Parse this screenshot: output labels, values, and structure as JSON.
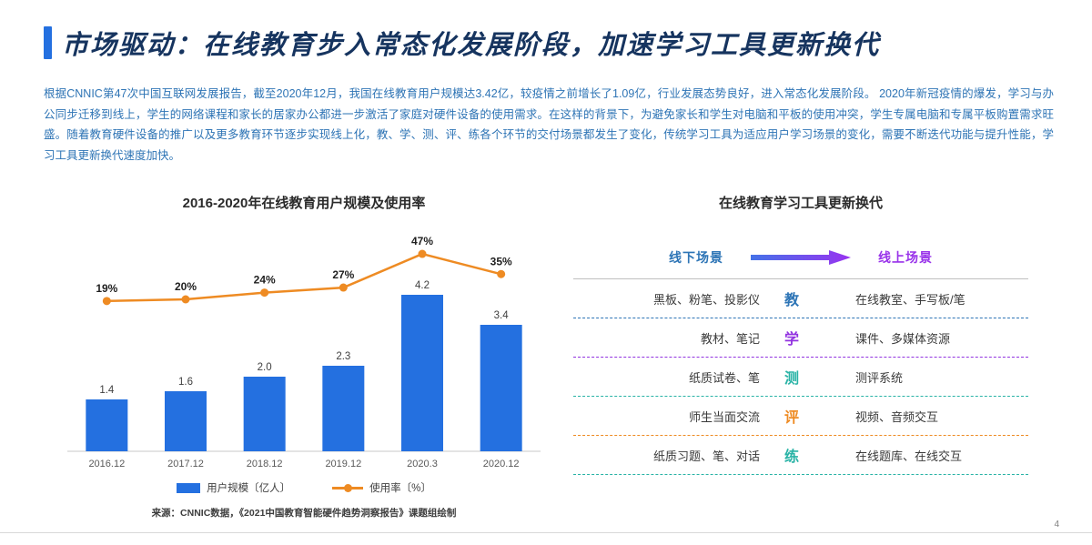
{
  "colors": {
    "accent": "#2470E0",
    "title": "#16345F",
    "body": "#2E74B5"
  },
  "header": {
    "title": "市场驱动：在线教育步入常态化发展阶段，加速学习工具更新换代",
    "body": "根据CNNIC第47次中国互联网发展报告，截至2020年12月，我国在线教育用户规模达3.42亿，较疫情之前增长了1.09亿，行业发展态势良好，进入常态化发展阶段。 2020年新冠疫情的爆发，学习与办公同步迁移到线上，学生的网络课程和家长的居家办公都进一步激活了家庭对硬件设备的使用需求。在这样的背景下，为避免家长和学生对电脑和平板的使用冲突，学生专属电脑和专属平板购置需求旺盛。随着教育硬件设备的推广以及更多教育环节逐步实现线上化，教、学、测、评、练各个环节的交付场景都发生了变化，传统学习工具为适应用户学习场景的变化，需要不断迭代功能与提升性能，学习工具更新换代速度加快。"
  },
  "chart_data": {
    "type": "bar",
    "title": "2016-2020年在线教育用户规模及使用率",
    "categories": [
      "2016.12",
      "2017.12",
      "2018.12",
      "2019.12",
      "2020.3",
      "2020.12"
    ],
    "series": [
      {
        "name": "用户规模〔亿人〕",
        "type": "bar",
        "values": [
          1.4,
          1.6,
          2.0,
          2.3,
          4.2,
          3.4
        ],
        "color": "#2470E0"
      },
      {
        "name": "使用率〔%〕",
        "type": "line",
        "values": [
          19,
          20,
          24,
          27,
          47,
          35
        ],
        "color": "#EE8B23"
      }
    ],
    "ylim_bar": [
      0,
      4.5
    ],
    "grid": false,
    "legend_position": "bottom",
    "source": "来源：CNNIC数据，《2021中国教育智能硬件趋势洞察报告》课题组绘制"
  },
  "panel": {
    "title": "在线教育学习工具更新换代",
    "offline_label": "线下场景",
    "online_label": "线上场景",
    "offline_color": "#2E75B6",
    "online_color": "#9933EA",
    "arrow": {
      "from": "#4472E8",
      "to": "#9933F0"
    },
    "rows": [
      {
        "offline": "黑板、粉笔、投影仪",
        "stage": "教",
        "online": "在线教室、手写板/笔",
        "color": "#2E75B6"
      },
      {
        "offline": "教材、笔记",
        "stage": "学",
        "online": "课件、多媒体资源",
        "color": "#9233E0"
      },
      {
        "offline": "纸质试卷、笔",
        "stage": "测",
        "online": "测评系统",
        "color": "#29B3A6"
      },
      {
        "offline": "师生当面交流",
        "stage": "评",
        "online": "视频、音频交互",
        "color": "#EE8B23"
      },
      {
        "offline": "纸质习题、笔、对话",
        "stage": "练",
        "online": "在线题库、在线交互",
        "color": "#29B3A6"
      }
    ]
  },
  "footer": {
    "page_number": "4"
  }
}
